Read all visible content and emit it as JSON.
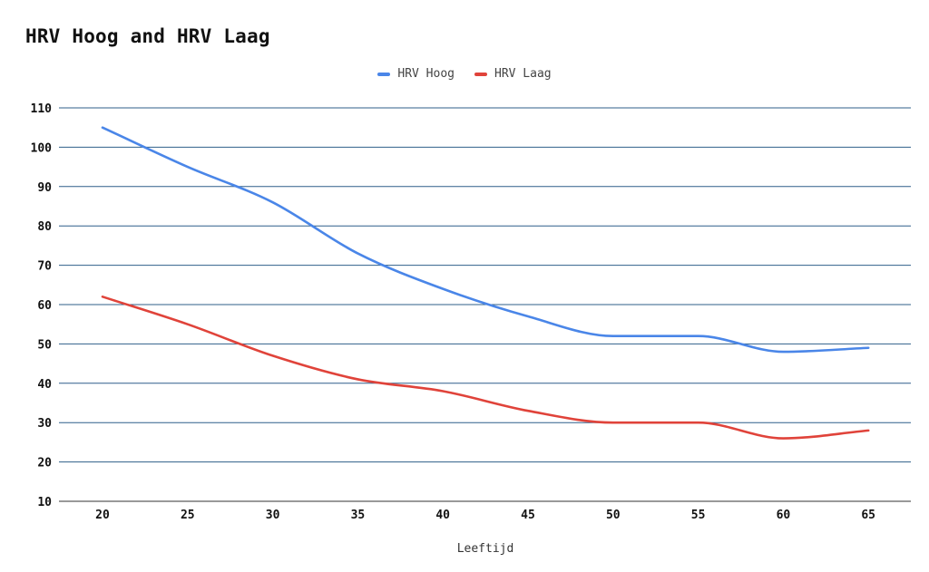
{
  "chart_data": {
    "type": "line",
    "title": "HRV Hoog and HRV Laag",
    "xlabel": "Leeftijd",
    "ylabel": "",
    "x": [
      20,
      25,
      30,
      35,
      40,
      45,
      50,
      55,
      60,
      65
    ],
    "ylim": [
      10,
      110
    ],
    "yticks": [
      10,
      20,
      30,
      40,
      50,
      60,
      70,
      80,
      90,
      100,
      110
    ],
    "grid": true,
    "legend_position": "top-center",
    "series": [
      {
        "name": "HRV Hoog",
        "color": "#4A86E8",
        "values": [
          105,
          95,
          86,
          73,
          64,
          57,
          52,
          52,
          48,
          49
        ]
      },
      {
        "name": "HRV Laag",
        "color": "#E0433A",
        "values": [
          62,
          55,
          47,
          41,
          38,
          33,
          30,
          30,
          26,
          28
        ]
      }
    ]
  }
}
